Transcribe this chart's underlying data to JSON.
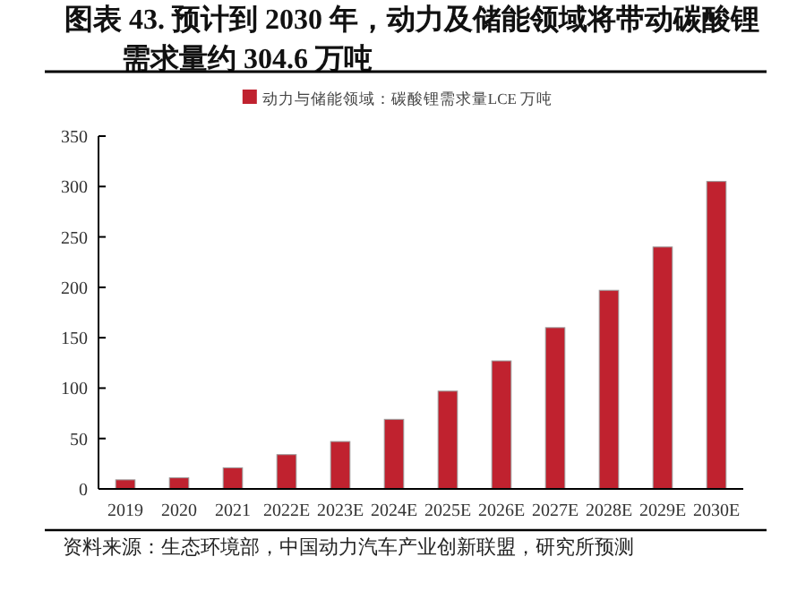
{
  "chart_data": {
    "type": "bar",
    "title": "图表 43. 预计到 2030 年，动力及储能领域将带动碳酸锂需求量约 304.6 万吨",
    "categories": [
      "2019",
      "2020",
      "2021",
      "2022E",
      "2023E",
      "2024E",
      "2025E",
      "2026E",
      "2027E",
      "2028E",
      "2029E",
      "2030E"
    ],
    "series": [
      {
        "name": "动力与储能领域：碳酸锂需求量LCE 万吨",
        "color": "#c0222f",
        "values": [
          9,
          11,
          21,
          34,
          47,
          69,
          97,
          127,
          160,
          197,
          240,
          305
        ]
      }
    ],
    "ylim": [
      0,
      350
    ],
    "yticks": [
      0,
      50,
      100,
      150,
      200,
      250,
      300,
      350
    ],
    "grid": false,
    "legend": "top",
    "annotations": [
      "资料来源：生态环境部，中国动力汽车产业创新联盟，研究所预测"
    ]
  }
}
